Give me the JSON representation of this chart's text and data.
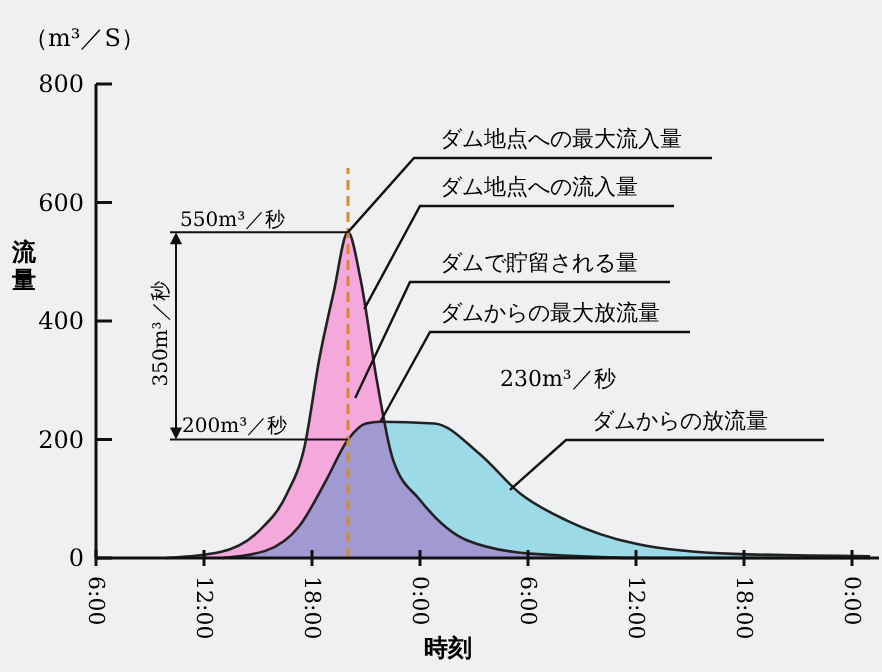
{
  "chart_data": {
    "type": "area",
    "xlabel": "時刻",
    "ylabel": "流量",
    "xlim": [
      "2000-01-01T06:00",
      "2000-01-03T01:30"
    ],
    "ylim": [
      0,
      800
    ],
    "xticks": [
      {
        "value": "2000-01-01T06:00",
        "label": "6:00"
      },
      {
        "value": "2000-01-01T12:00",
        "label": "12:00"
      },
      {
        "value": "2000-01-01T18:00",
        "label": "18:00"
      },
      {
        "value": "2000-01-02T00:00",
        "label": "0:00"
      },
      {
        "value": "2000-01-02T06:00",
        "label": "6:00"
      },
      {
        "value": "2000-01-02T12:00",
        "label": "12:00"
      },
      {
        "value": "2000-01-02T18:00",
        "label": "18:00"
      },
      {
        "value": "2000-01-03T00:00",
        "label": "0:00"
      }
    ],
    "yticks": [
      0,
      200,
      400,
      600,
      800
    ],
    "grid": false,
    "series": [
      {
        "color": "#f4a8dc",
        "x": [
          "2000-01-01T09:54",
          "2000-01-01T12:54",
          "2000-01-01T15:06",
          "2000-01-01T16:36",
          "2000-01-01T17:36",
          "2000-01-01T18:24",
          "2000-01-01T19:12",
          "2000-01-01T20:00",
          "2000-01-01T20:42",
          "2000-01-01T21:36",
          "2000-01-01T22:30",
          "2000-01-02T00:00",
          "2000-01-02T02:36",
          "2000-01-02T06:18",
          "2000-01-02T13:00",
          "2000-01-03T01:00"
        ],
        "values": [
          0,
          10,
          47,
          108,
          190,
          335,
          448,
          550,
          470,
          300,
          166,
          98,
          30,
          7,
          0,
          0
        ]
      },
      {
        "color": "#a8e8f4",
        "x": [
          "2000-01-01T13:00",
          "2000-01-01T15:24",
          "2000-01-01T17:18",
          "2000-01-01T18:48",
          "2000-01-01T20:00",
          "2000-01-01T21:00",
          "2000-01-01T21:48",
          "2000-01-02T00:48",
          "2000-01-02T03:18",
          "2000-01-02T05:36",
          "2000-01-02T08:06",
          "2000-01-02T12:00",
          "2000-01-02T17:24",
          "2000-01-03T01:00"
        ],
        "values": [
          0,
          12,
          54,
          132,
          200,
          227,
          230,
          227,
          176,
          108,
          64,
          24,
          7,
          3
        ]
      }
    ],
    "ref_lines": [
      {
        "axis": "x",
        "value": "2000-01-01T20:00",
        "color": "#d88a30",
        "line_style": "dashed"
      }
    ],
    "annotations": [
      {
        "text": "550m³／秒",
        "x": "2000-01-01T20:00",
        "y": 550
      },
      {
        "text": "200m³／秒",
        "x": "2000-01-01T20:00",
        "y": 200
      },
      "350m³／秒",
      {
        "text": "ダム地点への最大流入量",
        "x": "2000-01-01T20:00",
        "y": 550
      },
      {
        "text": "ダム地点への流入量",
        "x": "2000-01-01T20:54",
        "y": 420
      },
      {
        "text": "ダムで貯留される量",
        "x": "2000-01-01T20:24",
        "y": 270
      },
      {
        "text": "ダムからの最大放流量",
        "x": "2000-01-01T21:48",
        "y": 230
      },
      {
        "text": "ダムからの放流量",
        "x": "2000-01-02T05:00",
        "y": 115
      },
      "230m³／秒",
      "（m³／S）"
    ]
  }
}
